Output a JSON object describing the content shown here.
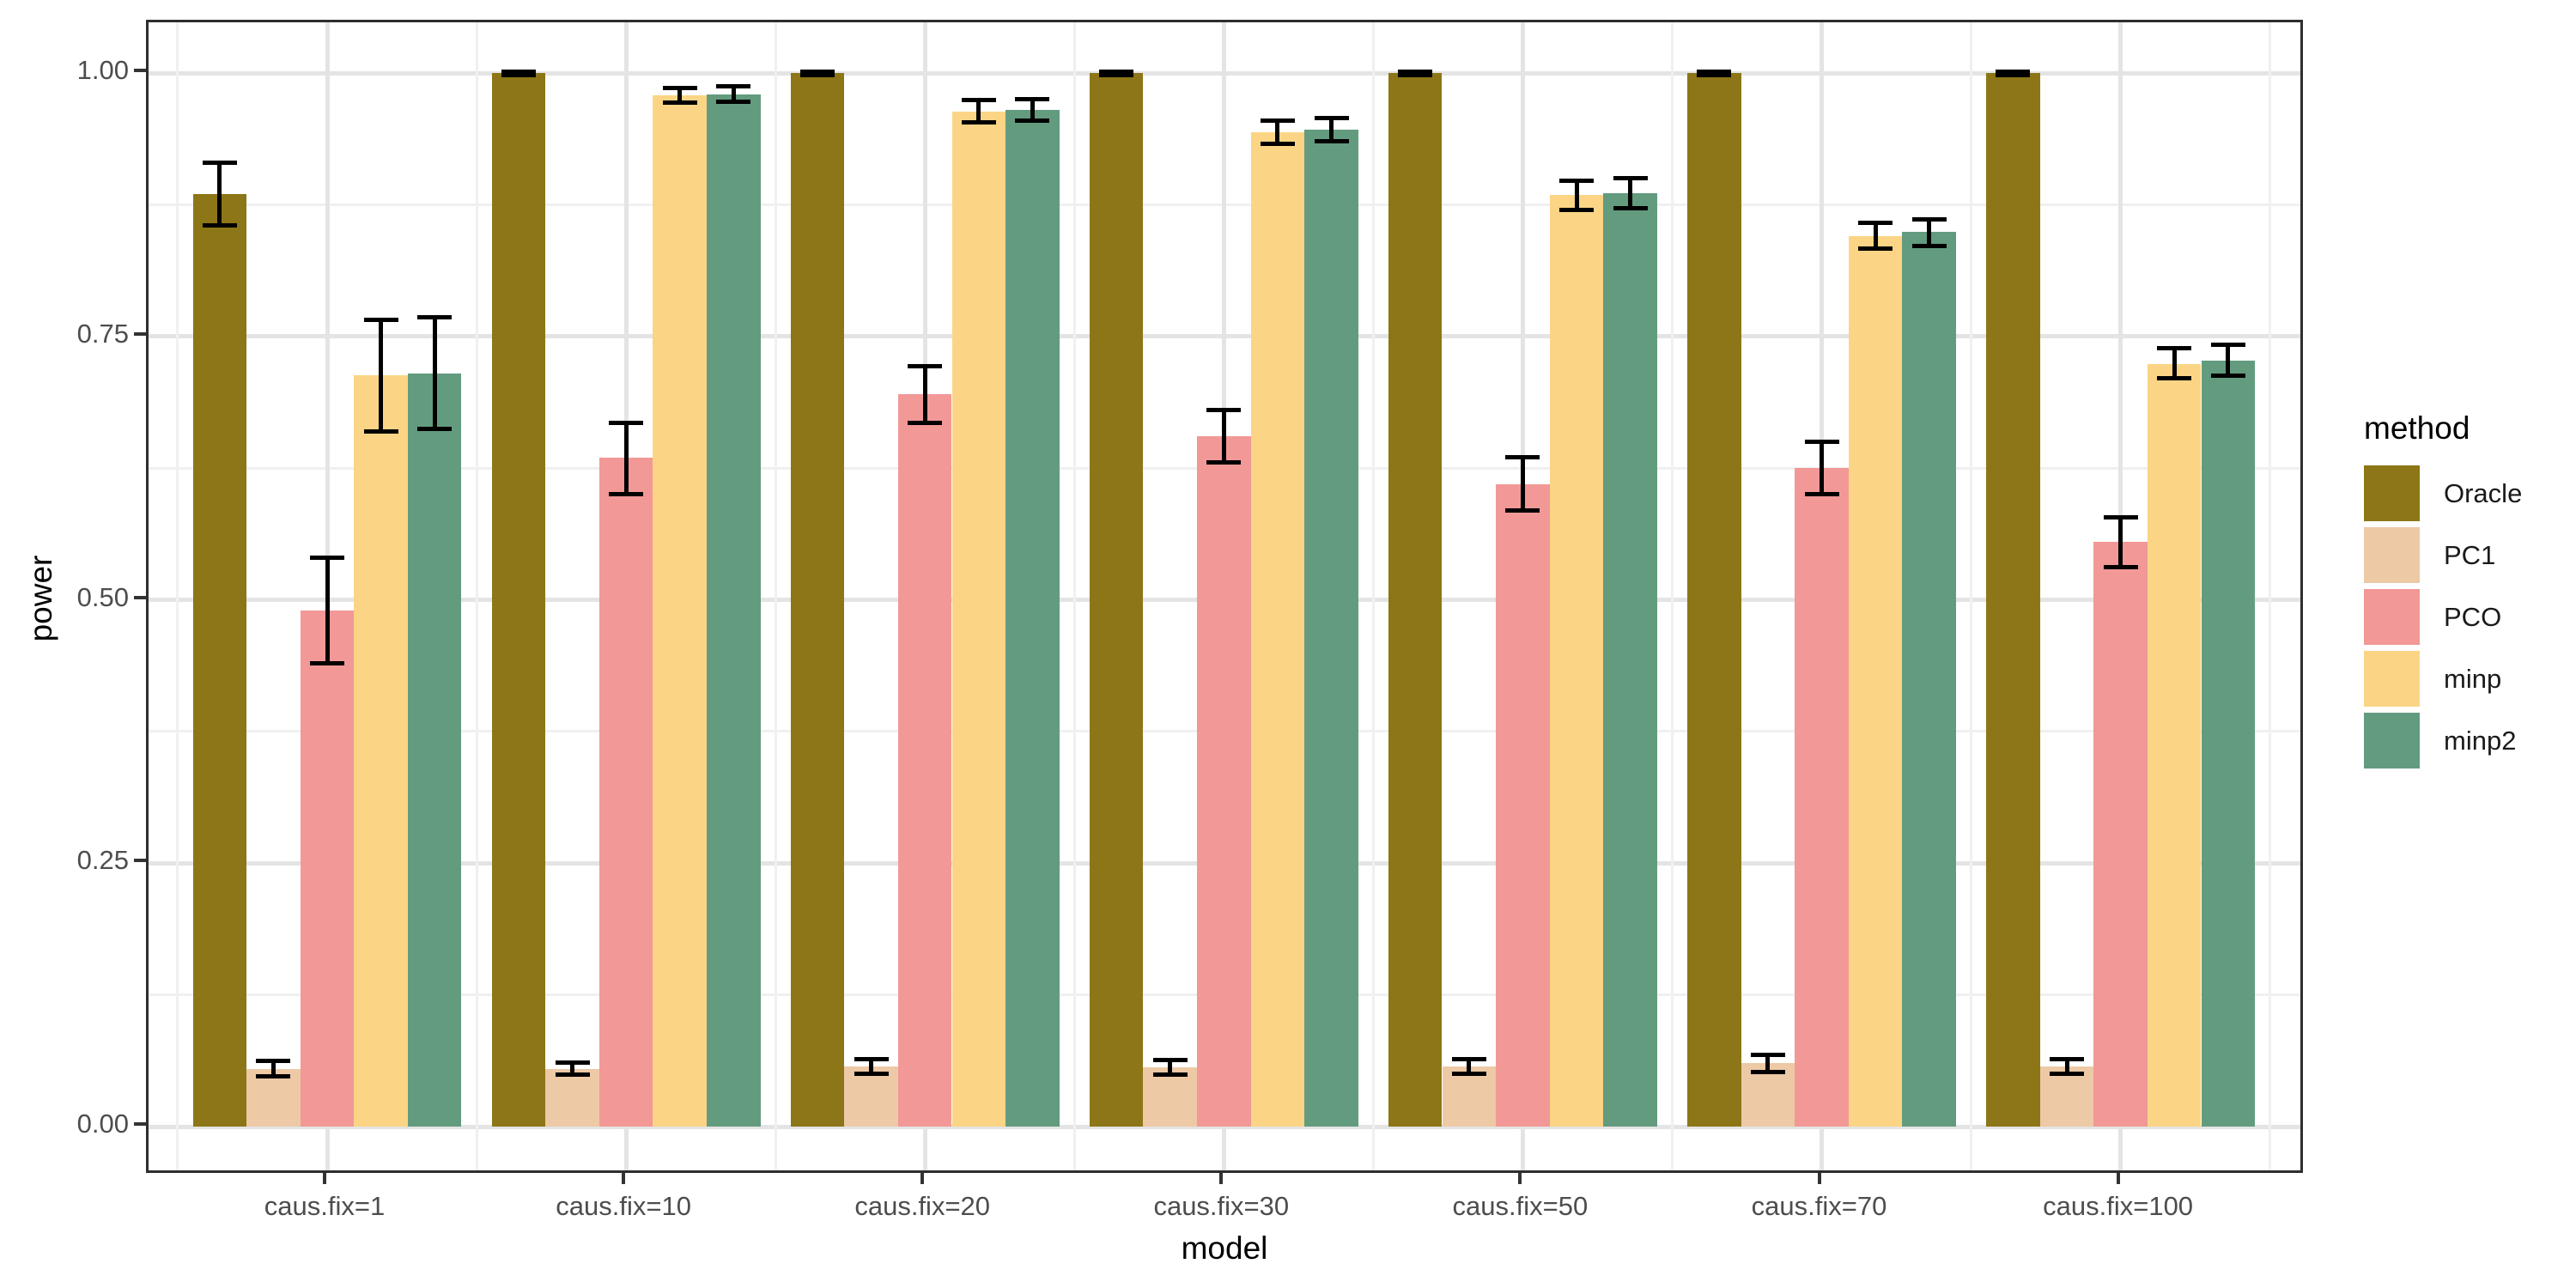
{
  "chart_data": {
    "type": "bar",
    "title": "",
    "xlabel": "model",
    "ylabel": "power",
    "legend_title": "method",
    "legend_position": "right",
    "grid": true,
    "ylim": [
      0,
      1.0
    ],
    "yticks": [
      0.0,
      0.25,
      0.5,
      0.75,
      1.0
    ],
    "ytick_labels": [
      "0.00",
      "0.25",
      "0.50",
      "0.75",
      "1.00"
    ],
    "categories": [
      "caus.fix=1",
      "caus.fix=10",
      "caus.fix=20",
      "caus.fix=30",
      "caus.fix=50",
      "caus.fix=70",
      "caus.fix=100"
    ],
    "series": [
      {
        "name": "Oracle",
        "color": "#8c7617",
        "values": [
          0.885,
          1.0,
          1.0,
          1.0,
          1.0,
          1.0,
          1.0
        ],
        "ci_low": [
          0.855,
          0.998,
          0.998,
          0.998,
          0.998,
          0.998,
          0.998
        ],
        "ci_high": [
          0.915,
          1.001,
          1.001,
          1.001,
          1.001,
          1.001,
          1.001
        ]
      },
      {
        "name": "PC1",
        "color": "#edc9a6",
        "values": [
          0.055,
          0.055,
          0.057,
          0.056,
          0.057,
          0.06,
          0.057
        ],
        "ci_low": [
          0.048,
          0.049,
          0.05,
          0.049,
          0.05,
          0.052,
          0.05
        ],
        "ci_high": [
          0.062,
          0.061,
          0.064,
          0.063,
          0.064,
          0.068,
          0.064
        ]
      },
      {
        "name": "PCO",
        "color": "#f29897",
        "values": [
          0.49,
          0.635,
          0.695,
          0.655,
          0.61,
          0.625,
          0.555
        ],
        "ci_low": [
          0.44,
          0.6,
          0.668,
          0.63,
          0.585,
          0.6,
          0.531
        ],
        "ci_high": [
          0.54,
          0.668,
          0.722,
          0.68,
          0.635,
          0.65,
          0.578
        ]
      },
      {
        "name": "minp",
        "color": "#fbd585",
        "values": [
          0.713,
          0.979,
          0.963,
          0.944,
          0.884,
          0.845,
          0.724
        ],
        "ci_low": [
          0.66,
          0.972,
          0.953,
          0.933,
          0.87,
          0.833,
          0.71
        ],
        "ci_high": [
          0.766,
          0.986,
          0.974,
          0.955,
          0.898,
          0.858,
          0.739
        ]
      },
      {
        "name": "minp2",
        "color": "#639b7f",
        "values": [
          0.715,
          0.98,
          0.965,
          0.946,
          0.886,
          0.849,
          0.727
        ],
        "ci_low": [
          0.662,
          0.973,
          0.955,
          0.935,
          0.872,
          0.836,
          0.713
        ],
        "ci_high": [
          0.768,
          0.987,
          0.975,
          0.957,
          0.9,
          0.861,
          0.742
        ]
      }
    ]
  }
}
